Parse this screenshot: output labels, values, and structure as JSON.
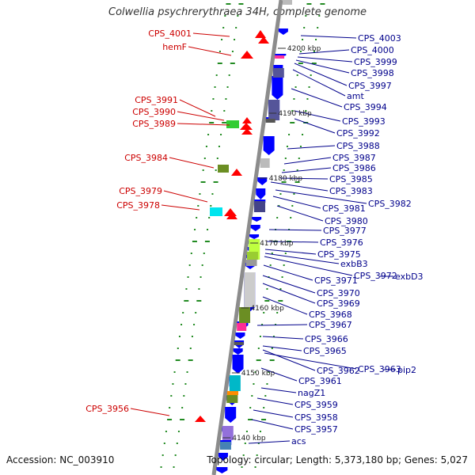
{
  "title": "Colwellia psychrerythraea 34H, complete genome",
  "footer": {
    "accession": "Accession: NC_003910",
    "topology": "Topology: circular; Length: 5,373,180 bp; Genes: 5,027"
  },
  "scale_labels": [
    "4200 kbp",
    "4190 kbp",
    "4180 kbp",
    "4170 kbp",
    "4160 kbp",
    "4150 kbp",
    "4140 kbp"
  ],
  "left_labels": [
    "CPS_4001",
    "hemF",
    "CPS_3991",
    "CPS_3990",
    "CPS_3989",
    "CPS_3984",
    "CPS_3979",
    "CPS_3978",
    "CPS_3956"
  ],
  "right_labels": [
    "CPS_4003",
    "CPS_4000",
    "CPS_3999",
    "CPS_3998",
    "CPS_3997",
    "amt",
    "CPS_3994",
    "CPS_3993",
    "CPS_3992",
    "CPS_3988",
    "CPS_3987",
    "CPS_3986",
    "CPS_3985",
    "CPS_3983",
    "CPS_3982",
    "CPS_3981",
    "CPS_3980",
    "CPS_3977",
    "CPS_3976",
    "CPS_3975",
    "exbB3",
    "CPS_3972",
    "exbD3",
    "CPS_3971",
    "CPS_3970",
    "CPS_3969",
    "CPS_3968",
    "CPS_3967",
    "CPS_3966",
    "CPS_3965",
    "CPS_3962",
    "CPS_3963",
    "pip2",
    "CPS_3961",
    "nagZ1",
    "CPS_3959",
    "CPS_3958",
    "CPS_3957",
    "acs"
  ],
  "colors": {
    "forward_gene": "#0000ff",
    "reverse_gene": "#ff0000",
    "right_label": "#00008b",
    "left_label": "#cc0000",
    "backbone": "#8c8c8c",
    "ticks": "#228b22"
  }
}
